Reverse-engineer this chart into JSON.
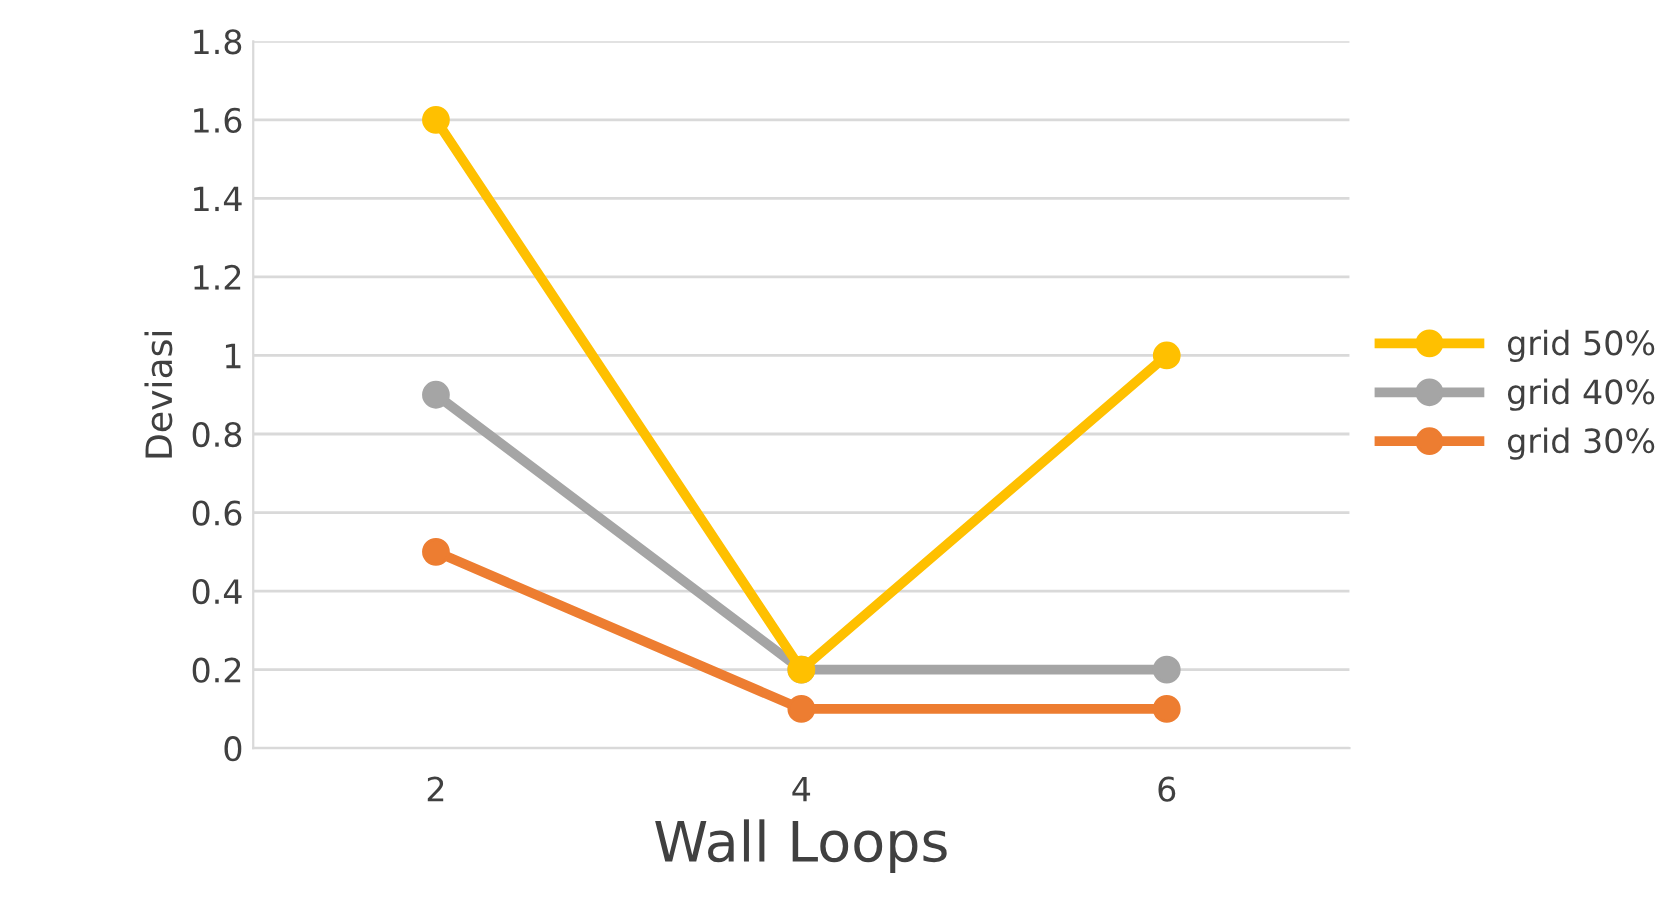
{
  "chart_data": {
    "type": "line",
    "xlabel": "Wall Loops",
    "ylabel": "Deviasi",
    "categories": [
      "2",
      "4",
      "6"
    ],
    "series": [
      {
        "name": "grid 50%",
        "color": "#ffc000",
        "values": [
          1.6,
          0.2,
          1.0
        ]
      },
      {
        "name": "grid 40%",
        "color": "#a5a5a5",
        "values": [
          0.9,
          0.2,
          0.2
        ]
      },
      {
        "name": "grid 30%",
        "color": "#ed7d31",
        "values": [
          0.5,
          0.1,
          0.1
        ]
      }
    ],
    "ylim": [
      0,
      1.8
    ],
    "yticks": [
      0,
      0.2,
      0.4,
      0.6,
      0.8,
      1,
      1.2,
      1.4,
      1.6,
      1.8
    ],
    "grid": "y",
    "legend": "right",
    "marker": "circle",
    "line_style": "solid"
  }
}
